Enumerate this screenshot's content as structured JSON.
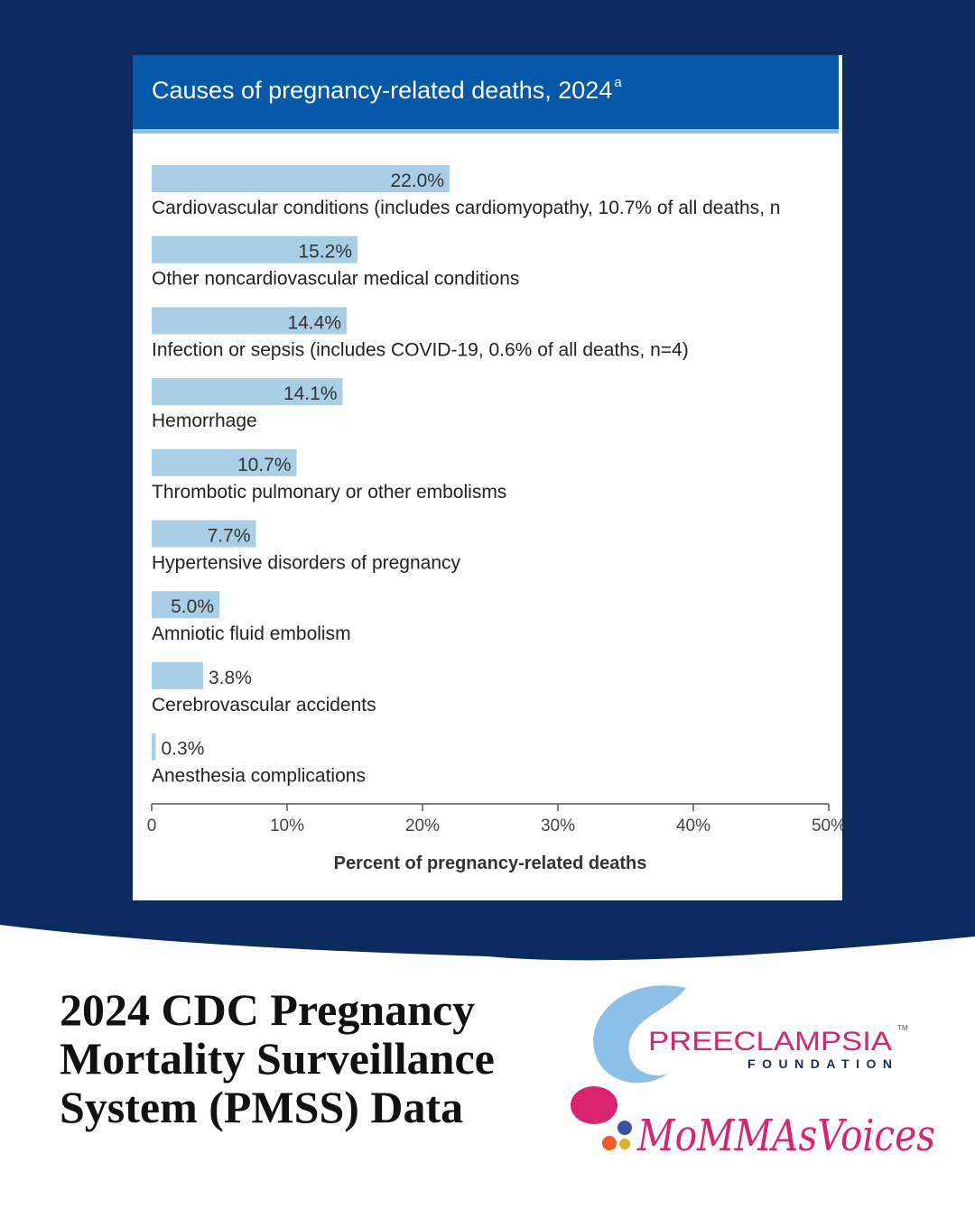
{
  "chart_data": {
    "type": "bar",
    "title": "Causes of pregnancy-related deaths, 2024",
    "title_superscript": "a",
    "categories": [
      "Cardiovascular conditions (includes cardiomyopathy, 10.7% of all deaths, n",
      "Other noncardiovascular medical conditions",
      "Infection or sepsis (includes COVID-19, 0.6% of all deaths, n=4)",
      "Hemorrhage",
      "Thrombotic pulmonary or other embolisms",
      "Hypertensive disorders of pregnancy",
      "Amniotic fluid embolism",
      "Cerebrovascular accidents",
      "Anesthesia complications"
    ],
    "values": [
      22.0,
      15.2,
      14.4,
      14.1,
      10.7,
      7.7,
      5.0,
      3.8,
      0.3
    ],
    "value_labels": [
      "22.0%",
      "15.2%",
      "14.4%",
      "14.1%",
      "10.7%",
      "7.7%",
      "5.0%",
      "3.8%",
      "0.3%"
    ],
    "xlabel": "Percent of pregnancy-related deaths",
    "xlim": [
      0,
      50
    ],
    "xticks": [
      "0",
      "10%",
      "20%",
      "30%",
      "40%",
      "50%"
    ],
    "bar_color": "#a8cfe6",
    "orientation": "horizontal"
  },
  "caption": "2024 CDC Pregnancy Mortality Surveillance System (PMSS) Data",
  "logos": {
    "preeclampsia": "PREECLAMPSIA",
    "foundation": "FOUNDATION",
    "tm": "TM",
    "mommas": "MoMMAsVoices"
  },
  "colors": {
    "background": "#0b2b5e",
    "header": "#0559a8",
    "pink": "#d8236f"
  }
}
